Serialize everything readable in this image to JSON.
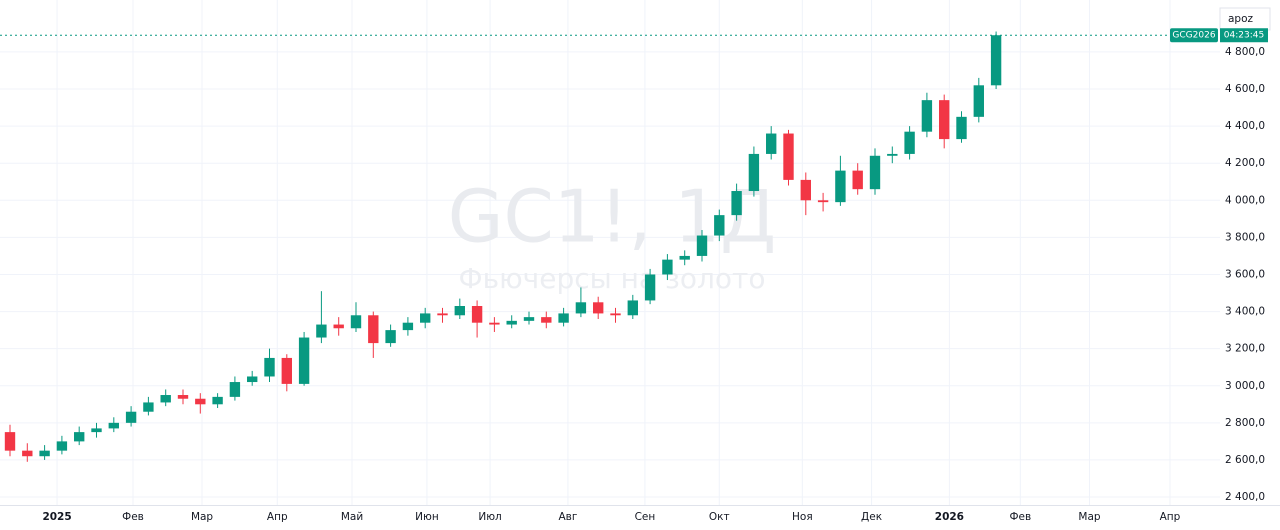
{
  "chart_data": {
    "type": "candlestick",
    "watermark_title": "GC1!, 1Д",
    "watermark_subtitle": "Фьючерсы на золото",
    "symbol_label": "GCG2026",
    "countdown": "04:23:45",
    "corner_text": "apoz",
    "up_color": "#089981",
    "down_color": "#f23645",
    "grid": true,
    "xlim": [
      0,
      70
    ],
    "ylim": [
      2357,
      5080
    ],
    "yticks": [
      {
        "value": 2400,
        "label": "2 400,0"
      },
      {
        "value": 2600,
        "label": "2 600,0"
      },
      {
        "value": 2800,
        "label": "2 800,0"
      },
      {
        "value": 3000,
        "label": "3 000,0"
      },
      {
        "value": 3200,
        "label": "3 200,0"
      },
      {
        "value": 3400,
        "label": "3 400,0"
      },
      {
        "value": 3600,
        "label": "3 600,0"
      },
      {
        "value": 3800,
        "label": "3 800,0"
      },
      {
        "value": 4000,
        "label": "4 000,0"
      },
      {
        "value": 4200,
        "label": "4 200,0"
      },
      {
        "value": 4400,
        "label": "4 400,0"
      },
      {
        "value": 4600,
        "label": "4 600,0"
      },
      {
        "value": 4800,
        "label": "4 800,0"
      }
    ],
    "xticks": [
      {
        "value": 2.72,
        "label": "2025"
      },
      {
        "value": 7.11,
        "label": "Фев"
      },
      {
        "value": 11.1,
        "label": "Мар"
      },
      {
        "value": 15.45,
        "label": "Апр"
      },
      {
        "value": 19.77,
        "label": "Май"
      },
      {
        "value": 24.1,
        "label": "Июн"
      },
      {
        "value": 27.75,
        "label": "Июл"
      },
      {
        "value": 32.25,
        "label": "Авг"
      },
      {
        "value": 36.7,
        "label": "Сен"
      },
      {
        "value": 41.0,
        "label": "Окт"
      },
      {
        "value": 45.8,
        "label": "Ноя"
      },
      {
        "value": 49.8,
        "label": "Дек"
      },
      {
        "value": 54.3,
        "label": "2026"
      },
      {
        "value": 58.4,
        "label": "Фев"
      },
      {
        "value": 62.4,
        "label": "Мар"
      },
      {
        "value": 67.05,
        "label": "Апр"
      }
    ],
    "open": [
      2750,
      2650,
      2620,
      2650,
      2700,
      2750,
      2770,
      2800,
      2860,
      2910,
      2950,
      2930,
      2900,
      2940,
      3020,
      3050,
      3150,
      3010,
      3260,
      3330,
      3310,
      3380,
      3230,
      3300,
      3340,
      3390,
      3380,
      3430,
      3340,
      3330,
      3350,
      3370,
      3340,
      3390,
      3450,
      3390,
      3380,
      3460,
      3600,
      3680,
      3700,
      3810,
      3920,
      4050,
      4250,
      4360,
      4110,
      4000,
      3990,
      4160,
      4060,
      4240,
      4250,
      4370,
      4540,
      4330,
      4450,
      4620
    ],
    "high": [
      2790,
      2690,
      2680,
      2730,
      2780,
      2800,
      2830,
      2890,
      2940,
      2980,
      2980,
      2960,
      2960,
      3050,
      3080,
      3200,
      3170,
      3290,
      3510,
      3370,
      3450,
      3400,
      3330,
      3370,
      3420,
      3420,
      3470,
      3460,
      3370,
      3380,
      3400,
      3400,
      3420,
      3530,
      3480,
      3420,
      3490,
      3630,
      3710,
      3730,
      3840,
      3950,
      4090,
      4290,
      4400,
      4380,
      4150,
      4040,
      4240,
      4200,
      4280,
      4290,
      4400,
      4580,
      4570,
      4480,
      4660,
      4910
    ],
    "low": [
      2620,
      2590,
      2600,
      2630,
      2680,
      2720,
      2750,
      2780,
      2840,
      2890,
      2900,
      2850,
      2880,
      2920,
      3000,
      3020,
      2970,
      3000,
      3230,
      3270,
      3290,
      3150,
      3210,
      3270,
      3310,
      3340,
      3360,
      3260,
      3290,
      3310,
      3330,
      3310,
      3320,
      3370,
      3360,
      3340,
      3360,
      3440,
      3570,
      3650,
      3670,
      3780,
      3890,
      4020,
      4220,
      4080,
      3920,
      3940,
      3970,
      4030,
      4030,
      4200,
      4220,
      4340,
      4280,
      4310,
      4420,
      4600
    ],
    "close": [
      2650,
      2620,
      2650,
      2700,
      2750,
      2770,
      2800,
      2860,
      2910,
      2950,
      2930,
      2900,
      2940,
      3020,
      3050,
      3150,
      3010,
      3260,
      3330,
      3310,
      3380,
      3230,
      3300,
      3340,
      3390,
      3380,
      3430,
      3340,
      3330,
      3350,
      3370,
      3340,
      3390,
      3450,
      3390,
      3380,
      3460,
      3600,
      3680,
      3700,
      3810,
      3920,
      4050,
      4250,
      4360,
      4110,
      4000,
      3990,
      4160,
      4060,
      4240,
      4250,
      4370,
      4540,
      4330,
      4450,
      4620,
      4890
    ]
  }
}
